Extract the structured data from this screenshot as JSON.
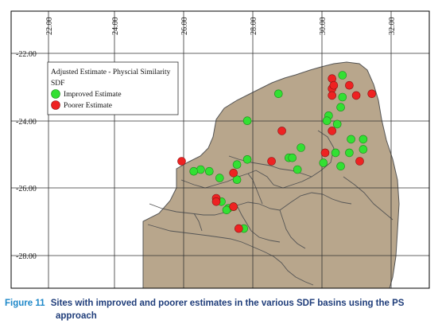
{
  "map": {
    "x_ticks": [
      "22.00",
      "24.00",
      "26.00",
      "28.00",
      "30.00",
      "32.00"
    ],
    "y_ticks": [
      "-22.00",
      "-24.00",
      "-26.00",
      "-28.00"
    ],
    "colors": {
      "land": "#b8a68c",
      "border": "#555555",
      "improved": "#33e033",
      "poorer": "#ee2222",
      "grid": "#333333",
      "frame": "#000000"
    },
    "legend": {
      "title_line1": "Adjusted Estimate - Physcial Similarity",
      "title_line2": "SDF",
      "improved_label": "Improved Estimate",
      "poorer_label": "Poorer Estimate"
    }
  },
  "chart_data": {
    "type": "scatter",
    "xlim": [
      21.0,
      32.8
    ],
    "ylim": [
      -29.0,
      -21.6
    ],
    "xlabel": "",
    "ylabel": "",
    "grid": true,
    "legend_position": "top-left",
    "series": [
      {
        "name": "Improved Estimate",
        "color": "#33e033",
        "points": [
          [
            30.5,
            -22.65
          ],
          [
            28.65,
            -23.2
          ],
          [
            30.5,
            -23.3
          ],
          [
            30.45,
            -23.6
          ],
          [
            30.1,
            -23.85
          ],
          [
            30.05,
            -24.0
          ],
          [
            30.35,
            -24.1
          ],
          [
            27.75,
            -24.0
          ],
          [
            30.75,
            -24.55
          ],
          [
            31.1,
            -24.55
          ],
          [
            29.3,
            -24.8
          ],
          [
            31.1,
            -24.85
          ],
          [
            30.7,
            -24.95
          ],
          [
            30.3,
            -24.95
          ],
          [
            28.95,
            -25.1
          ],
          [
            29.05,
            -25.1
          ],
          [
            29.95,
            -25.25
          ],
          [
            30.45,
            -25.35
          ],
          [
            29.2,
            -25.45
          ],
          [
            27.75,
            -25.15
          ],
          [
            27.45,
            -25.3
          ],
          [
            26.4,
            -25.45
          ],
          [
            26.2,
            -25.5
          ],
          [
            26.65,
            -25.5
          ],
          [
            26.95,
            -25.7
          ],
          [
            27.45,
            -25.75
          ],
          [
            27.0,
            -26.4
          ],
          [
            27.2,
            -26.6
          ],
          [
            27.15,
            -26.65
          ],
          [
            27.35,
            -26.55
          ],
          [
            27.65,
            -27.2
          ]
        ]
      },
      {
        "name": "Poorer Estimate",
        "color": "#ee2222",
        "points": [
          [
            30.2,
            -22.75
          ],
          [
            30.2,
            -23.05
          ],
          [
            30.2,
            -23.25
          ],
          [
            30.25,
            -22.95
          ],
          [
            30.7,
            -22.95
          ],
          [
            30.9,
            -23.25
          ],
          [
            31.35,
            -23.2
          ],
          [
            28.75,
            -24.3
          ],
          [
            30.2,
            -24.3
          ],
          [
            28.45,
            -25.2
          ],
          [
            30.0,
            -24.95
          ],
          [
            31.0,
            -25.2
          ],
          [
            25.85,
            -25.2
          ],
          [
            27.35,
            -25.55
          ],
          [
            26.85,
            -26.3
          ],
          [
            26.85,
            -26.4
          ],
          [
            27.35,
            -26.55
          ],
          [
            27.5,
            -27.2
          ]
        ]
      }
    ]
  },
  "caption": {
    "number": "Figure 11",
    "text_line1": "Sites with improved and poorer estimates in the various SDF basins using the PS",
    "text_line2": "approach"
  }
}
